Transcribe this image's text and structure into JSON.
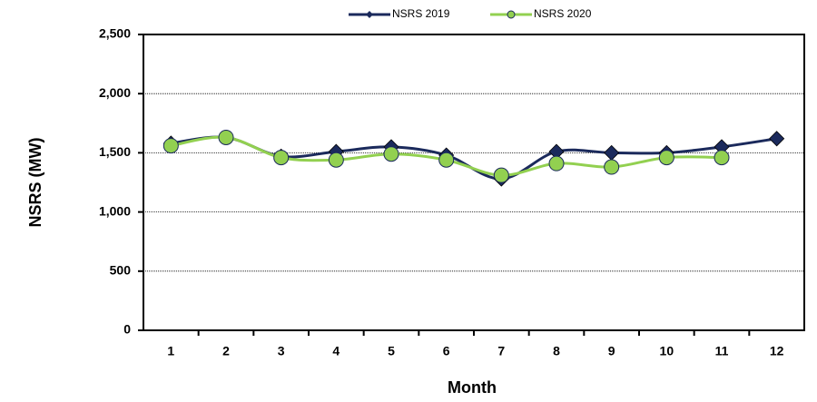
{
  "chart_data": {
    "type": "line",
    "x_label": "Month",
    "y_label": "NSRS (MW)",
    "categories": [
      "1",
      "2",
      "3",
      "4",
      "5",
      "6",
      "7",
      "8",
      "9",
      "10",
      "11",
      "12"
    ],
    "series": [
      {
        "name": "NSRS 2019",
        "color": "#1b2a5c",
        "marker": "diamond",
        "values": [
          1580,
          1630,
          1470,
          1510,
          1550,
          1480,
          1280,
          1510,
          1500,
          1500,
          1550,
          1620
        ]
      },
      {
        "name": "NSRS 2020",
        "color": "#92d050",
        "marker": "circle",
        "values": [
          1560,
          1630,
          1460,
          1440,
          1490,
          1440,
          1310,
          1410,
          1380,
          1460,
          1460,
          null
        ]
      }
    ],
    "ylim": [
      0,
      2500
    ],
    "yticks": [
      0,
      500,
      {
        "value": 1000,
        "label": "1,000"
      },
      {
        "value": 1500,
        "label": "1,500"
      },
      {
        "value": 2000,
        "label": "2,000"
      },
      {
        "value": 2500,
        "label": "2,500"
      }
    ],
    "grid": true,
    "legend": "top"
  }
}
